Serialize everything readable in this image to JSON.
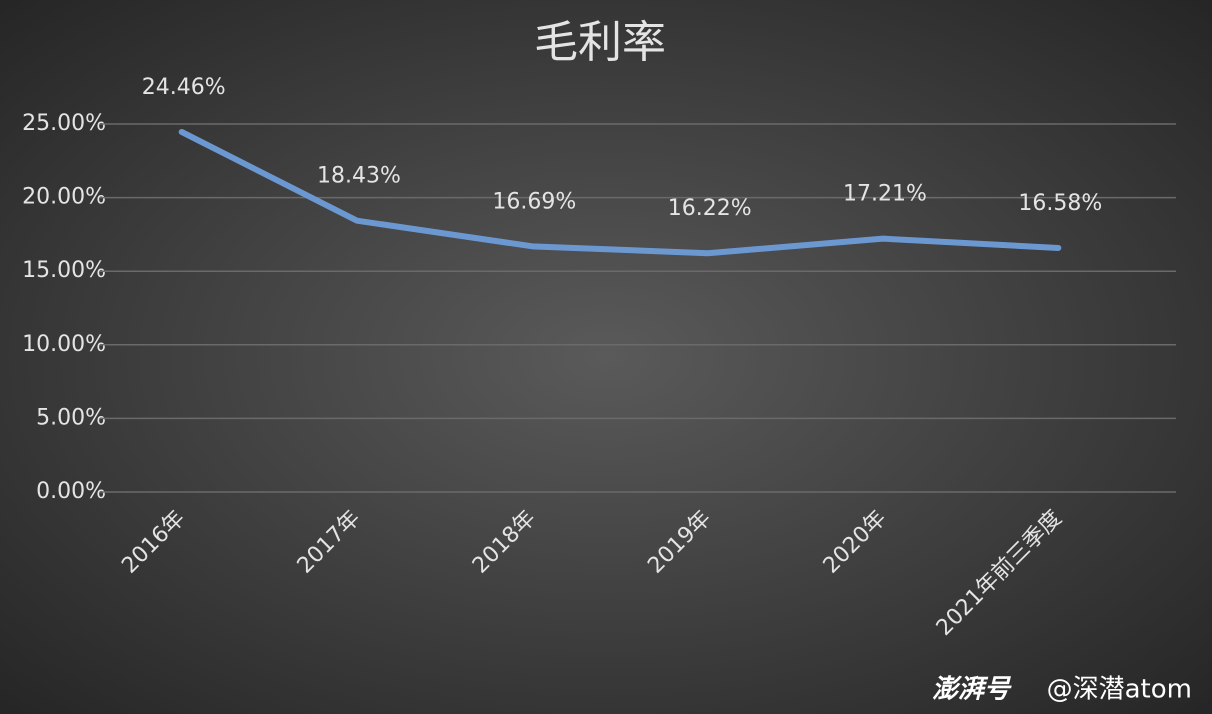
{
  "chart_data": {
    "type": "line",
    "title": "毛利率",
    "categories": [
      "2016年",
      "2017年",
      "2018年",
      "2019年",
      "2020年",
      "2021年前三季度"
    ],
    "series": [
      {
        "name": "毛利率",
        "color": "#6c98d2",
        "values": [
          24.46,
          18.43,
          16.69,
          16.22,
          17.21,
          16.58
        ],
        "value_labels": [
          "24.46%",
          "18.43%",
          "16.69%",
          "16.22%",
          "17.21%",
          "16.58%"
        ]
      }
    ],
    "ylim": [
      0,
      25
    ],
    "yticks": [
      {
        "value": 0,
        "label": "0.00%"
      },
      {
        "value": 5,
        "label": "5.00%"
      },
      {
        "value": 10,
        "label": "10.00%"
      },
      {
        "value": 15,
        "label": "15.00%"
      },
      {
        "value": 20,
        "label": "20.00%"
      },
      {
        "value": 25,
        "label": "25.00%"
      }
    ],
    "grid": true
  },
  "watermark": {
    "brand": "澎湃号",
    "author": "@深潜atom"
  }
}
